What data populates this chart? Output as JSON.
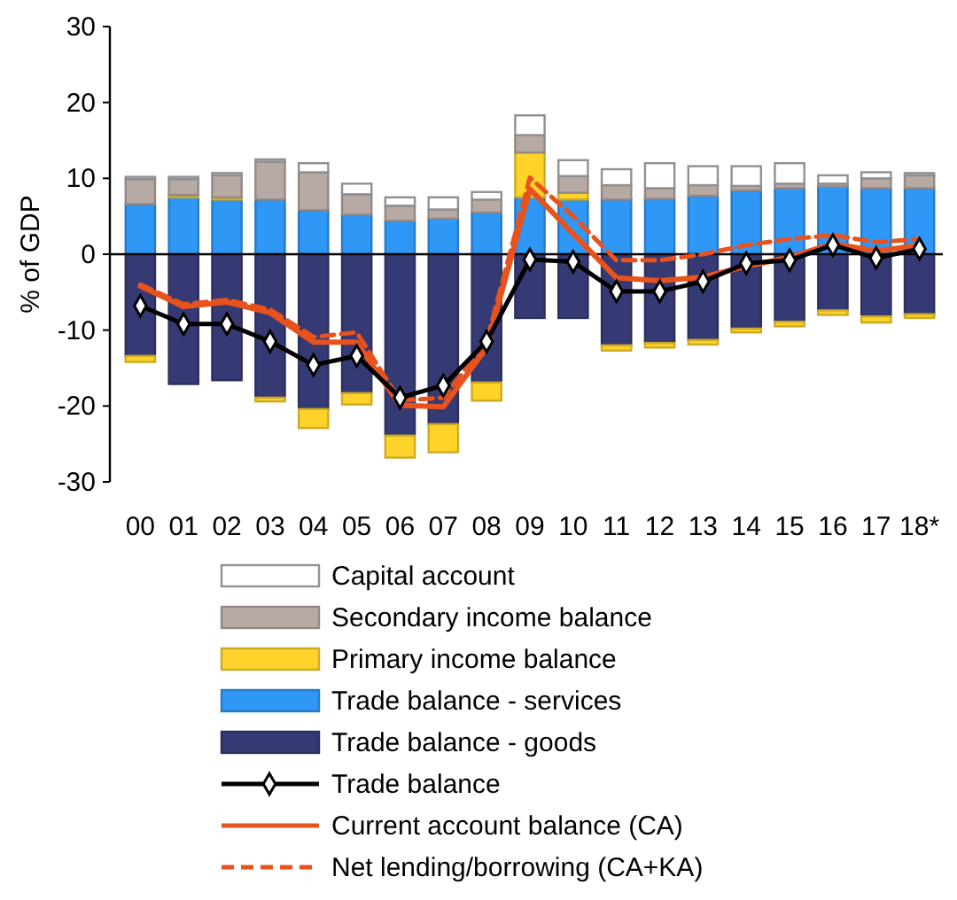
{
  "chart_data": {
    "type": "bar",
    "stacked": true,
    "ylabel": "% of GDP",
    "ylim": [
      -30,
      30
    ],
    "yticks": [
      -30,
      -20,
      -10,
      0,
      10,
      20,
      30
    ],
    "legend": "bottom",
    "categories": [
      "00",
      "01",
      "02",
      "03",
      "04",
      "05",
      "06",
      "07",
      "08",
      "09",
      "10",
      "11",
      "12",
      "13",
      "14",
      "15",
      "16",
      "17",
      "18*"
    ],
    "series": [
      {
        "name": "Trade balance - goods",
        "color": "#363a74",
        "values": [
          -13.4,
          -17.1,
          -16.6,
          -18.9,
          -20.4,
          -18.3,
          -23.9,
          -22.4,
          -16.9,
          -8.4,
          -8.4,
          -12.0,
          -11.7,
          -11.3,
          -9.8,
          -8.9,
          -7.4,
          -8.2,
          -7.9
        ]
      },
      {
        "name": "Trade balance - services",
        "color": "#2f97f5",
        "values": [
          6.6,
          7.5,
          7.2,
          7.2,
          5.8,
          5.2,
          4.4,
          4.7,
          5.5,
          7.5,
          7.2,
          7.2,
          7.3,
          7.7,
          8.4,
          8.7,
          8.9,
          8.7,
          8.7
        ]
      },
      {
        "name": "Primary income balance",
        "color": "#ffd32a",
        "values": [
          -0.8,
          0.3,
          0.3,
          -0.5,
          -2.5,
          -1.5,
          -2.9,
          -3.7,
          -2.4,
          5.9,
          0.9,
          -0.7,
          -0.6,
          -0.6,
          -0.5,
          -0.6,
          -0.6,
          -0.8,
          -0.5
        ]
      },
      {
        "name": "Secondary income balance",
        "color": "#b7a9a3",
        "values": [
          3.3,
          2.1,
          2.9,
          5.0,
          5.0,
          2.7,
          2.0,
          1.2,
          1.7,
          2.3,
          2.2,
          1.9,
          1.4,
          1.4,
          0.6,
          0.6,
          0.4,
          1.3,
          1.7
        ]
      },
      {
        "name": "Capital account",
        "color": "#ffffff",
        "values": [
          0.3,
          0.3,
          0.3,
          0.3,
          1.2,
          1.4,
          1.1,
          1.6,
          1.0,
          2.6,
          2.1,
          2.1,
          3.3,
          2.5,
          2.6,
          2.7,
          1.1,
          0.8,
          0.3
        ]
      },
      {
        "name": "Trade balance",
        "type": "line",
        "color": "#000000",
        "marker": "diamond",
        "line_style": "solid",
        "values": [
          -6.8,
          -9.2,
          -9.2,
          -11.5,
          -14.6,
          -13.4,
          -18.9,
          -17.3,
          -11.5,
          -0.7,
          -1.0,
          -4.9,
          -4.9,
          -3.6,
          -1.2,
          -0.8,
          1.2,
          -0.5,
          0.7
        ]
      },
      {
        "name": "Current account balance (CA)",
        "type": "line",
        "color": "#e8521c",
        "marker": "none",
        "line_style": "solid",
        "values": [
          -4.2,
          -6.9,
          -6.3,
          -7.7,
          -11.6,
          -11.6,
          -19.9,
          -20.1,
          -12.3,
          8.6,
          2.7,
          -3.1,
          -3.5,
          -3.0,
          -1.6,
          -0.4,
          1.4,
          0.4,
          1.2
        ]
      },
      {
        "name": "Net lending/borrowing (CA+KA)",
        "type": "line",
        "color": "#e8521c",
        "marker": "none",
        "line_style": "dashed",
        "values": [
          -4.0,
          -6.6,
          -6.0,
          -7.3,
          -10.9,
          -10.3,
          -19.3,
          -18.9,
          -11.5,
          10.1,
          5.0,
          -0.8,
          -0.8,
          0.0,
          1.2,
          2.0,
          2.5,
          1.6,
          2.0
        ]
      }
    ]
  }
}
